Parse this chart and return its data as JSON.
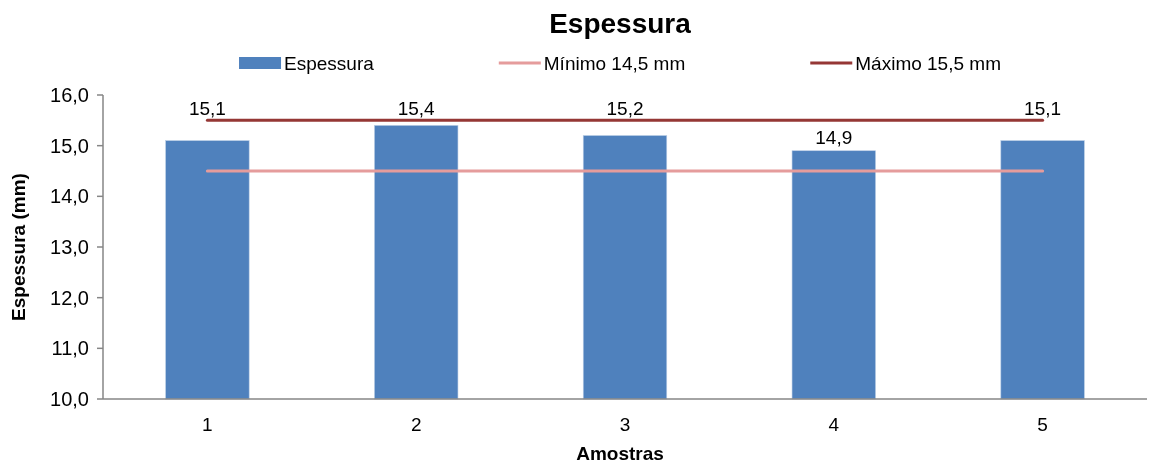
{
  "chart_data": {
    "type": "bar",
    "title": "Espessura",
    "xlabel": "Amostras",
    "ylabel": "Espessura (mm)",
    "categories": [
      "1",
      "2",
      "3",
      "4",
      "5"
    ],
    "series": [
      {
        "name": "Espessura",
        "color": "#4f81bd",
        "values": [
          15.1,
          15.4,
          15.2,
          14.9,
          15.1
        ],
        "value_labels": [
          "15,1",
          "15,4",
          "15,2",
          "14,9",
          "15,1"
        ]
      },
      {
        "name": "Mínimo 14,5 mm",
        "type": "line",
        "color": "#e59c9c",
        "values": [
          14.5,
          14.5,
          14.5,
          14.5,
          14.5
        ]
      },
      {
        "name": "Máximo 15,5 mm",
        "type": "line",
        "color": "#953735",
        "values": [
          15.5,
          15.5,
          15.5,
          15.5,
          15.5
        ]
      }
    ],
    "ylim": [
      10,
      16
    ],
    "yticks": [
      {
        "value": 10,
        "label": "10,0"
      },
      {
        "value": 11,
        "label": "11,0"
      },
      {
        "value": 12,
        "label": "12,0"
      },
      {
        "value": 13,
        "label": "13,0"
      },
      {
        "value": 14,
        "label": "14,0"
      },
      {
        "value": 15,
        "label": "15,0"
      },
      {
        "value": 16,
        "label": "16,0"
      }
    ],
    "grid": false,
    "legend": "top",
    "marker": "none"
  }
}
